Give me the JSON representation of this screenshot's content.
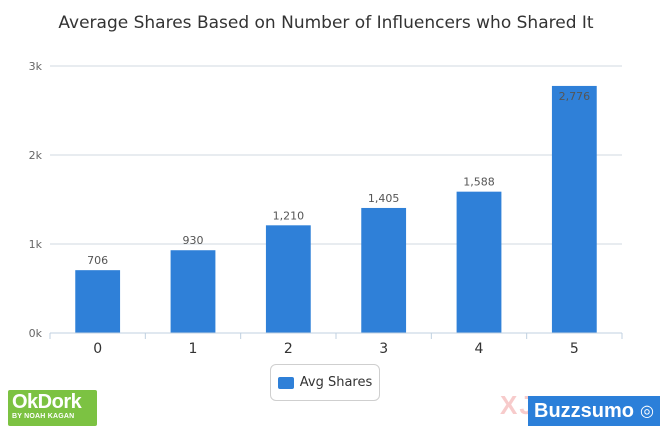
{
  "chart_data": {
    "type": "bar",
    "title": "Average Shares Based on Number of Influencers who Shared It",
    "categories": [
      "0",
      "1",
      "2",
      "3",
      "4",
      "5"
    ],
    "series": [
      {
        "name": "Avg Shares",
        "values": [
          706,
          930,
          1210,
          1405,
          1588,
          2776
        ],
        "labels": [
          "706",
          "930",
          "1,210",
          "1,405",
          "1,588",
          "2,776"
        ]
      }
    ],
    "ylim": [
      0,
      3000
    ],
    "yticks": [
      0,
      1000,
      2000,
      3000
    ],
    "ytick_labels": [
      "0k",
      "1k",
      "2k",
      "3k"
    ],
    "grid": true,
    "legend_position": "bottom-center",
    "colors": {
      "bar": "#2f80d8",
      "grid": "#d0d8e0",
      "axis": "#c0d0e0"
    }
  },
  "branding": {
    "okdork_title": "OkDork",
    "okdork_subtitle": "BY NOAH KAGAN",
    "buzzsumo": "Buzzsumo",
    "watermark": "XJ"
  }
}
